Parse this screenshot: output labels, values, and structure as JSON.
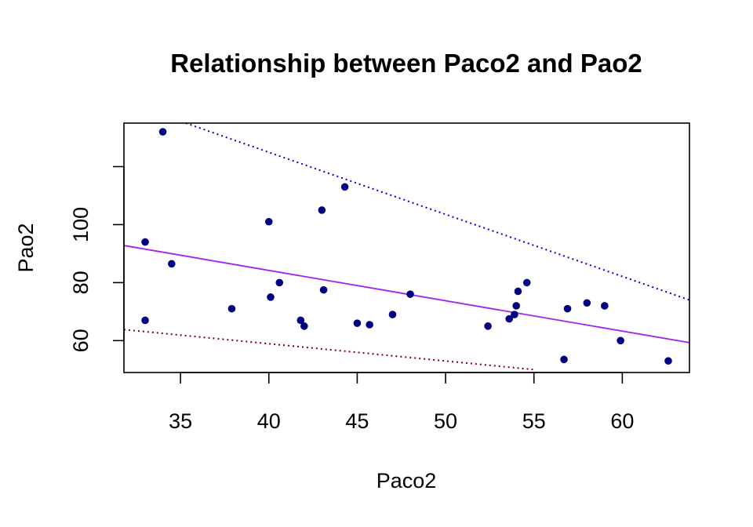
{
  "chart_data": {
    "type": "scatter",
    "title": "Relationship between Paco2 and Pao2",
    "xlabel": "Paco2",
    "ylabel": "Pao2",
    "xlim": [
      31.8,
      63.8
    ],
    "ylim": [
      49,
      135
    ],
    "xticks": [
      35,
      40,
      45,
      50,
      55,
      60
    ],
    "yticks": [
      60,
      80,
      100,
      120
    ],
    "ytick_labels": [
      "60",
      "80",
      "100",
      ""
    ],
    "grid": false,
    "legend": "none",
    "points": {
      "color": "#000080",
      "x": [
        33.0,
        33.0,
        34.0,
        34.5,
        37.9,
        40.0,
        40.1,
        40.6,
        41.8,
        42.0,
        43.0,
        43.1,
        44.3,
        45.0,
        45.7,
        47.0,
        48.0,
        52.4,
        53.6,
        53.9,
        54.0,
        54.1,
        54.6,
        56.7,
        56.9,
        58.0,
        59.0,
        59.9,
        62.6
      ],
      "y": [
        94,
        67,
        132,
        86.5,
        71,
        101,
        75,
        80,
        67,
        65,
        105,
        77.5,
        113,
        66,
        65.5,
        69,
        76,
        65,
        67.5,
        69,
        72,
        77,
        80,
        53.5,
        71,
        73,
        72,
        60,
        53
      ]
    },
    "lines": [
      {
        "kind": "regression-fit",
        "color": "#a020f0",
        "style": "solid",
        "x": [
          31.8,
          63.8
        ],
        "y": [
          92.8,
          59.3
        ]
      },
      {
        "kind": "upper-bound",
        "color": "#0000cd",
        "style": "dotted",
        "x": [
          35.3,
          63.8
        ],
        "y": [
          135,
          74
        ]
      },
      {
        "kind": "lower-bound",
        "color": "#800000",
        "style": "dotted",
        "x": [
          31.8,
          55.0
        ],
        "y": [
          63.8,
          50.0
        ]
      }
    ]
  }
}
